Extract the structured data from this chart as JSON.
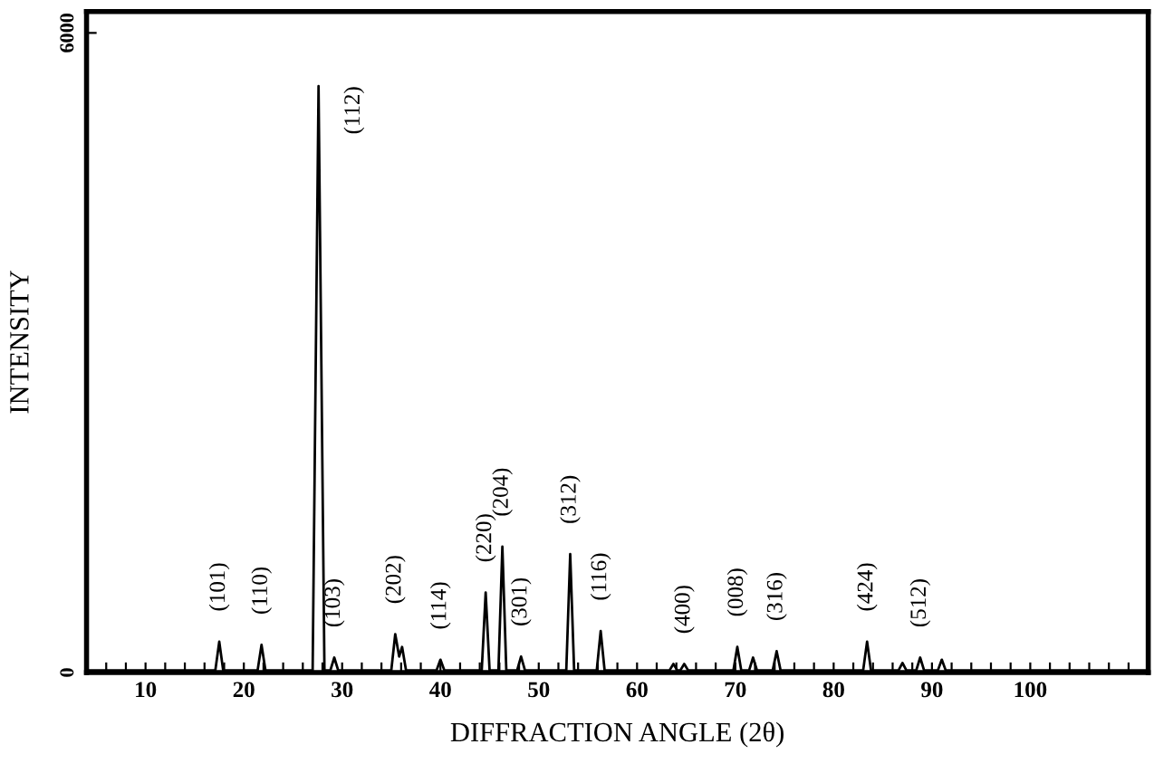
{
  "chart_data": {
    "type": "line",
    "xlabel": "DIFFRACTION ANGLE (2θ)",
    "ylabel": "INTENSITY",
    "series": [
      {
        "color": "#000000",
        "x": [
          4,
          16,
          17.1,
          17.5,
          17.9,
          21.4,
          21.8,
          22.2,
          27.0,
          27.6,
          28.2,
          28.8,
          29.2,
          29.6,
          35.0,
          35.4,
          35.8,
          36.1,
          36.5,
          39.6,
          40,
          40.4,
          44.2,
          44.6,
          45.0,
          45.9,
          46.3,
          46.7,
          47.8,
          48.2,
          48.6,
          52.8,
          53.2,
          53.6,
          55.9,
          56.3,
          56.7,
          63.3,
          63.7,
          64.1,
          64.4,
          64.8,
          65.2,
          69.8,
          70.2,
          70.6,
          71.4,
          71.8,
          72.2,
          73.8,
          74.2,
          74.6,
          83.0,
          83.4,
          83.8,
          86.6,
          87,
          87.4,
          88.4,
          88.8,
          89.2,
          90.6,
          91,
          91.4,
          112
        ],
        "values": [
          20,
          20,
          20,
          290,
          20,
          20,
          260,
          20,
          20,
          5500,
          20,
          20,
          140,
          20,
          20,
          360,
          150,
          240,
          20,
          20,
          120,
          20,
          20,
          750,
          20,
          20,
          1180,
          20,
          20,
          150,
          20,
          20,
          1110,
          20,
          20,
          390,
          20,
          20,
          80,
          20,
          20,
          80,
          20,
          20,
          240,
          20,
          20,
          140,
          20,
          20,
          200,
          20,
          20,
          290,
          20,
          20,
          90,
          20,
          20,
          140,
          20,
          20,
          120,
          20,
          20
        ]
      }
    ],
    "xlim": [
      4,
      112
    ],
    "ylim": [
      0,
      6200
    ],
    "xticks": [
      {
        "value": 6,
        "label": null
      },
      {
        "value": 8,
        "label": null
      },
      10,
      {
        "value": 12,
        "label": null
      },
      {
        "value": 14,
        "label": null
      },
      {
        "value": 16,
        "label": null
      },
      {
        "value": 18,
        "label": null
      },
      20,
      {
        "value": 22,
        "label": null
      },
      {
        "value": 24,
        "label": null
      },
      {
        "value": 26,
        "label": null
      },
      {
        "value": 28,
        "label": null
      },
      30,
      {
        "value": 32,
        "label": null
      },
      {
        "value": 34,
        "label": null
      },
      {
        "value": 36,
        "label": null
      },
      {
        "value": 38,
        "label": null
      },
      40,
      {
        "value": 42,
        "label": null
      },
      {
        "value": 44,
        "label": null
      },
      {
        "value": 46,
        "label": null
      },
      {
        "value": 48,
        "label": null
      },
      50,
      {
        "value": 52,
        "label": null
      },
      {
        "value": 54,
        "label": null
      },
      {
        "value": 56,
        "label": null
      },
      {
        "value": 58,
        "label": null
      },
      60,
      {
        "value": 62,
        "label": null
      },
      {
        "value": 64,
        "label": null
      },
      {
        "value": 66,
        "label": null
      },
      {
        "value": 68,
        "label": null
      },
      70,
      {
        "value": 72,
        "label": null
      },
      {
        "value": 74,
        "label": null
      },
      {
        "value": 76,
        "label": null
      },
      {
        "value": 78,
        "label": null
      },
      80,
      {
        "value": 82,
        "label": null
      },
      {
        "value": 84,
        "label": null
      },
      {
        "value": 86,
        "label": null
      },
      {
        "value": 88,
        "label": null
      },
      90,
      {
        "value": 92,
        "label": null
      },
      {
        "value": 94,
        "label": null
      },
      {
        "value": 96,
        "label": null
      },
      {
        "value": 98,
        "label": null
      },
      100,
      {
        "value": 102,
        "label": null
      },
      {
        "value": 104,
        "label": null
      },
      {
        "value": 106,
        "label": null
      },
      {
        "value": 108,
        "label": null
      },
      {
        "value": 110,
        "label": null
      }
    ],
    "yticks": [
      0,
      6000
    ],
    "grid": false,
    "marker": "none",
    "line_style": "solid",
    "annotations": [
      {
        "text": "(101)",
        "x": 17.5,
        "y": 290
      },
      {
        "text": "(110)",
        "x": 21.8,
        "y": 260
      },
      {
        "text": "(112)",
        "x": 27.6,
        "y": 5500
      },
      {
        "text": "(103)",
        "x": 29.2,
        "y": 140
      },
      {
        "text": "(202)",
        "x": 35.4,
        "y": 360
      },
      {
        "text": "(114)",
        "x": 40,
        "y": 120
      },
      {
        "text": "(220)",
        "x": 44.6,
        "y": 750
      },
      {
        "text": "(204)",
        "x": 46.3,
        "y": 1180
      },
      {
        "text": "(301)",
        "x": 48.2,
        "y": 150
      },
      {
        "text": "(312)",
        "x": 53.2,
        "y": 1110
      },
      {
        "text": "(116)",
        "x": 56.3,
        "y": 390
      },
      {
        "text": "(400)",
        "x": 64.8,
        "y": 80
      },
      {
        "text": "(008)",
        "x": 70.2,
        "y": 240
      },
      {
        "text": "(316)",
        "x": 74.2,
        "y": 200
      },
      {
        "text": "(424)",
        "x": 83.4,
        "y": 290
      },
      {
        "text": "(512)",
        "x": 88.8,
        "y": 140
      }
    ]
  }
}
